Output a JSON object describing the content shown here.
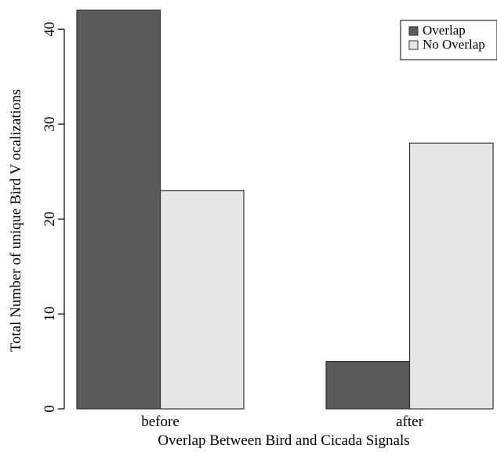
{
  "chart_data": {
    "type": "bar",
    "categories": [
      "before",
      "after"
    ],
    "series": [
      {
        "name": "Overlap",
        "values": [
          42,
          5
        ],
        "color": "#5a5a5a"
      },
      {
        "name": "No Overlap",
        "values": [
          23,
          28
        ],
        "color": "#e6e6e6"
      }
    ],
    "xlabel": "Overlap Between Bird and Cicada Signals",
    "ylabel": "Total Number of unique Bird V ocalizations",
    "ylim": [
      0,
      42
    ],
    "yticks": [
      0,
      10,
      20,
      30,
      40
    ],
    "grid": false,
    "legend_position": "top-right"
  }
}
